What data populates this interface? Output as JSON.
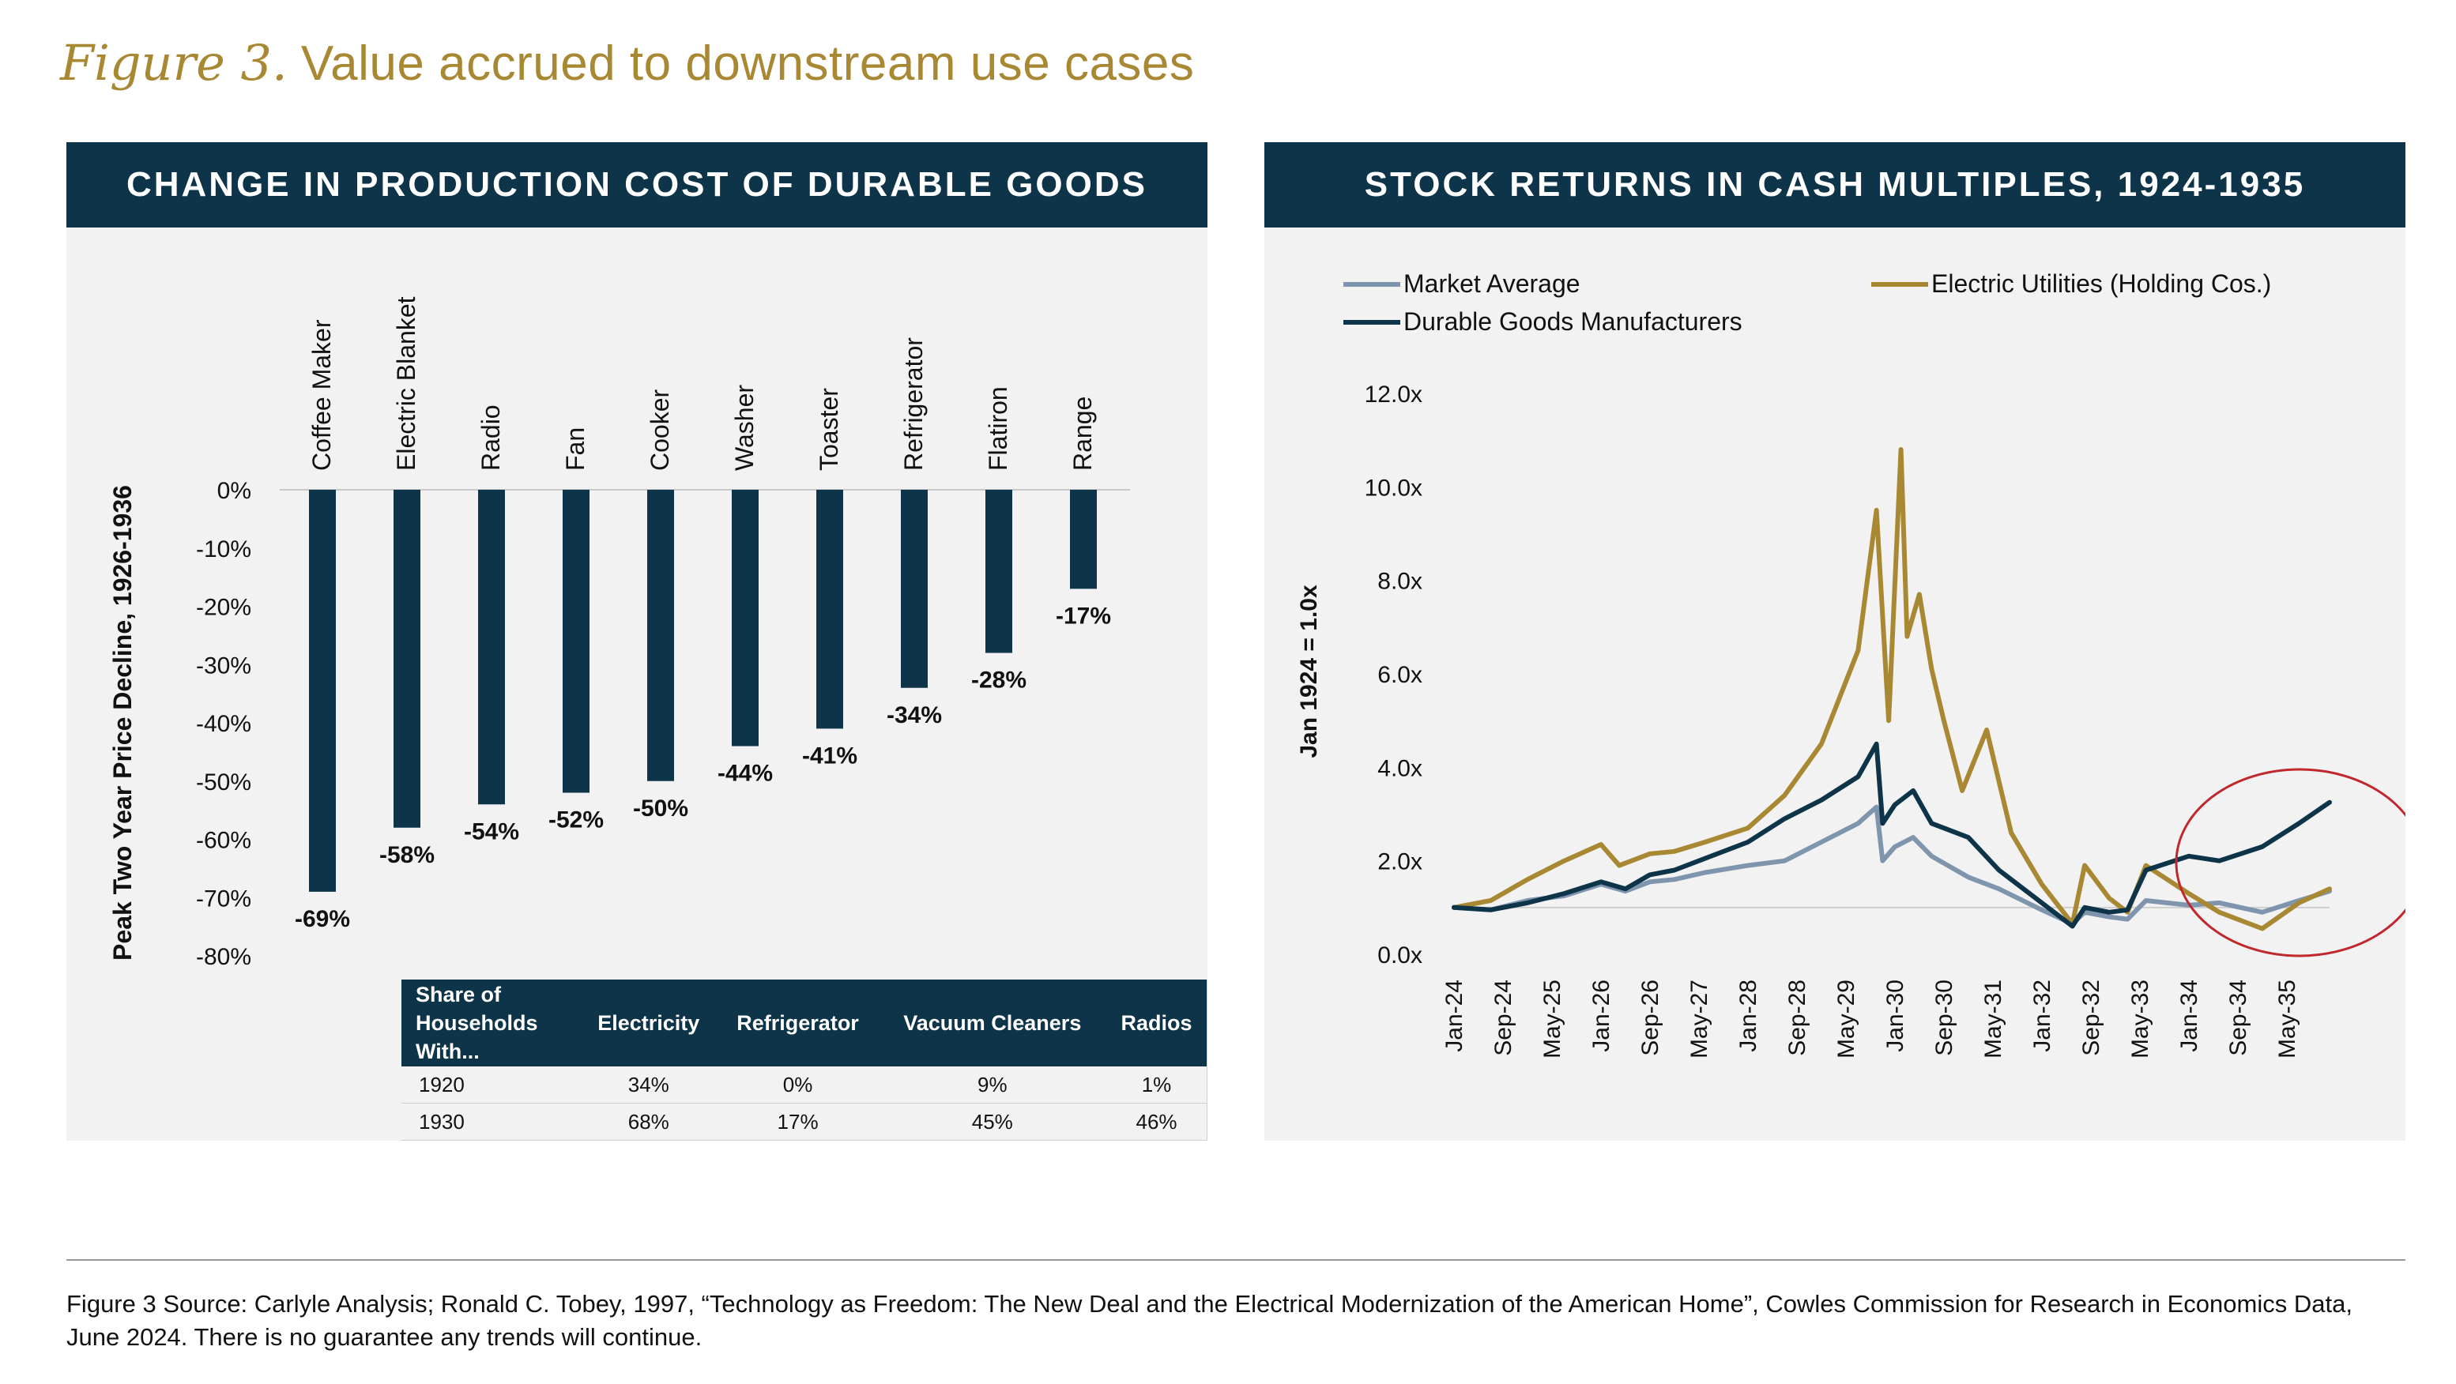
{
  "figure": {
    "label": "Figure 3.",
    "title": "Value accrued to downstream use cases"
  },
  "left_panel": {
    "header": "CHANGE IN PRODUCTION COST OF DURABLE GOODS",
    "table": {
      "headers": [
        "Share of Households With...",
        "Electricity",
        "Refrigerator",
        "Vacuum Cleaners",
        "Radios"
      ],
      "rows": [
        [
          "1920",
          "34%",
          "0%",
          "9%",
          "1%"
        ],
        [
          "1930",
          "68%",
          "17%",
          "45%",
          "46%"
        ]
      ]
    }
  },
  "right_panel": {
    "header": "STOCK RETURNS IN CASH MULTIPLES, 1924-1935"
  },
  "source_note": "Figure 3 Source: Carlyle Analysis; Ronald C. Tobey, 1997, “Technology as Freedom: The New Deal and the Electrical Modernization of the American Home”, Cowles Commission for Research in Economics Data, June 2024. There is no guarantee any trends will continue.",
  "chart_data": [
    {
      "type": "bar",
      "title": "CHANGE IN PRODUCTION COST OF DURABLE GOODS",
      "ylabel": "Peak Two Year Price Decline, 1926-1936",
      "ylim": [
        -80,
        0
      ],
      "yticks": [
        0,
        -10,
        -20,
        -30,
        -40,
        -50,
        -60,
        -70,
        -80
      ],
      "ytick_labels": [
        "0%",
        "-10%",
        "-20%",
        "-30%",
        "-40%",
        "-50%",
        "-60%",
        "-70%",
        "-80%"
      ],
      "categories": [
        "Coffee Maker",
        "Electric Blanket",
        "Radio",
        "Fan",
        "Cooker",
        "Washer",
        "Toaster",
        "Refrigerator",
        "Flatiron",
        "Range"
      ],
      "values": [
        -69,
        -58,
        -54,
        -52,
        -50,
        -44,
        -41,
        -34,
        -28,
        -17
      ],
      "data_labels": [
        "-69%",
        "-58%",
        "-54%",
        "-52%",
        "-50%",
        "-44%",
        "-41%",
        "-34%",
        "-28%",
        "-17%"
      ],
      "bar_color": "#0d3449",
      "grid": false
    },
    {
      "type": "line",
      "title": "STOCK RETURNS IN CASH MULTIPLES, 1924-1935",
      "ylabel": "Jan 1924 = 1.0x",
      "ylim": [
        0,
        12
      ],
      "yticks": [
        0,
        2,
        4,
        6,
        8,
        10,
        12
      ],
      "ytick_labels": [
        "0.0x",
        "2.0x",
        "4.0x",
        "6.0x",
        "8.0x",
        "10.0x",
        "12.0x"
      ],
      "x_range": [
        "Jan-24",
        "Dec-35"
      ],
      "x_ticks": [
        "Jan-24",
        "Sep-24",
        "May-25",
        "Jan-26",
        "Sep-26",
        "May-27",
        "Jan-28",
        "Sep-28",
        "May-29",
        "Jan-30",
        "Sep-30",
        "May-31",
        "Jan-32",
        "Sep-32",
        "May-33",
        "Jan-34",
        "Sep-34",
        "May-35"
      ],
      "legend_position": "top",
      "reference_line": 1.0,
      "annotation": "red circle highlighting 1933-1935 divergence",
      "series": [
        {
          "name": "Market Average",
          "color": "#7f95ad",
          "points": [
            [
              "Jan-24",
              1.0
            ],
            [
              "Jul-24",
              0.95
            ],
            [
              "Jan-25",
              1.15
            ],
            [
              "Jul-25",
              1.25
            ],
            [
              "Jan-26",
              1.5
            ],
            [
              "May-26",
              1.35
            ],
            [
              "Sep-26",
              1.55
            ],
            [
              "Jan-27",
              1.6
            ],
            [
              "Jun-27",
              1.75
            ],
            [
              "Jan-28",
              1.9
            ],
            [
              "Jul-28",
              2.0
            ],
            [
              "Jan-29",
              2.4
            ],
            [
              "Jul-29",
              2.8
            ],
            [
              "Oct-29",
              3.15
            ],
            [
              "Nov-29",
              2.0
            ],
            [
              "Jan-30",
              2.3
            ],
            [
              "Apr-30",
              2.5
            ],
            [
              "Jul-30",
              2.1
            ],
            [
              "Jan-31",
              1.65
            ],
            [
              "Jun-31",
              1.4
            ],
            [
              "Jan-32",
              0.95
            ],
            [
              "Jun-32",
              0.65
            ],
            [
              "Aug-32",
              0.9
            ],
            [
              "Dec-32",
              0.8
            ],
            [
              "Mar-33",
              0.75
            ],
            [
              "Jun-33",
              1.15
            ],
            [
              "Jan-34",
              1.05
            ],
            [
              "Jun-34",
              1.1
            ],
            [
              "Jan-35",
              0.9
            ],
            [
              "Jul-35",
              1.15
            ],
            [
              "Dec-35",
              1.35
            ]
          ]
        },
        {
          "name": "Electric Utilities (Holding Cos.)",
          "color": "#a88833",
          "points": [
            [
              "Jan-24",
              1.0
            ],
            [
              "Jul-24",
              1.15
            ],
            [
              "Jan-25",
              1.6
            ],
            [
              "Jul-25",
              2.0
            ],
            [
              "Jan-26",
              2.35
            ],
            [
              "Apr-26",
              1.9
            ],
            [
              "Sep-26",
              2.15
            ],
            [
              "Jan-27",
              2.2
            ],
            [
              "Jun-27",
              2.4
            ],
            [
              "Jan-28",
              2.7
            ],
            [
              "Jul-28",
              3.4
            ],
            [
              "Jan-29",
              4.5
            ],
            [
              "Jul-29",
              6.5
            ],
            [
              "Oct-29",
              9.5
            ],
            [
              "Dec-29",
              5.0
            ],
            [
              "Feb-30",
              10.8
            ],
            [
              "Mar-30",
              6.8
            ],
            [
              "May-30",
              7.7
            ],
            [
              "Jul-30",
              6.1
            ],
            [
              "Sep-30",
              5.0
            ],
            [
              "Dec-30",
              3.5
            ],
            [
              "Apr-31",
              4.8
            ],
            [
              "Aug-31",
              2.6
            ],
            [
              "Jan-32",
              1.5
            ],
            [
              "Jun-32",
              0.65
            ],
            [
              "Aug-32",
              1.9
            ],
            [
              "Dec-32",
              1.2
            ],
            [
              "Mar-33",
              0.9
            ],
            [
              "Jun-33",
              1.9
            ],
            [
              "Jan-34",
              1.3
            ],
            [
              "Jun-34",
              0.9
            ],
            [
              "Jan-35",
              0.55
            ],
            [
              "Jul-35",
              1.1
            ],
            [
              "Dec-35",
              1.4
            ]
          ]
        },
        {
          "name": "Durable Goods Manufacturers",
          "color": "#0d3449",
          "points": [
            [
              "Jan-24",
              1.0
            ],
            [
              "Jul-24",
              0.95
            ],
            [
              "Jan-25",
              1.1
            ],
            [
              "Jul-25",
              1.3
            ],
            [
              "Jan-26",
              1.55
            ],
            [
              "May-26",
              1.4
            ],
            [
              "Sep-26",
              1.7
            ],
            [
              "Jan-27",
              1.8
            ],
            [
              "Jun-27",
              2.05
            ],
            [
              "Jan-28",
              2.4
            ],
            [
              "Jul-28",
              2.9
            ],
            [
              "Jan-29",
              3.3
            ],
            [
              "Jul-29",
              3.8
            ],
            [
              "Oct-29",
              4.5
            ],
            [
              "Nov-29",
              2.8
            ],
            [
              "Jan-30",
              3.2
            ],
            [
              "Apr-30",
              3.5
            ],
            [
              "Jul-30",
              2.8
            ],
            [
              "Jan-31",
              2.5
            ],
            [
              "Jun-31",
              1.8
            ],
            [
              "Jan-32",
              1.1
            ],
            [
              "Jun-32",
              0.6
            ],
            [
              "Aug-32",
              1.0
            ],
            [
              "Dec-32",
              0.9
            ],
            [
              "Mar-33",
              0.95
            ],
            [
              "Jun-33",
              1.8
            ],
            [
              "Jan-34",
              2.1
            ],
            [
              "Jun-34",
              2.0
            ],
            [
              "Jan-35",
              2.3
            ],
            [
              "Jul-35",
              2.8
            ],
            [
              "Dec-35",
              3.25
            ]
          ]
        }
      ]
    }
  ]
}
